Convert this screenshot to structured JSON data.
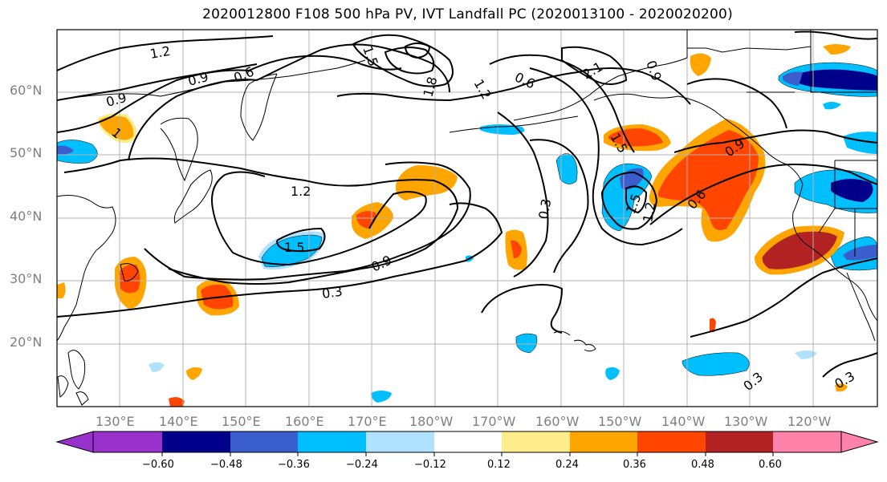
{
  "title": "2020012800 F108 500 hPa PV, IVT Landfall PC (2020013100 - 2020020200)",
  "map": {
    "lat_labels": [
      "60°N",
      "50°N",
      "40°N",
      "30°N",
      "20°N"
    ],
    "lon_labels": [
      "130°E",
      "140°E",
      "150°E",
      "160°E",
      "170°E",
      "180°W",
      "170°W",
      "160°W",
      "150°W",
      "140°W",
      "130°W",
      "120°W"
    ],
    "contour_labels": [
      "1.2",
      "0.9",
      "0.6",
      "0.9",
      "1",
      "1.5",
      "1.8",
      "1.2",
      "0.6",
      "2.1",
      "0.9",
      "1.2",
      "0.3",
      "1.5",
      "0.9",
      "0.3",
      "1.5",
      "0.6",
      "1.5",
      "1.2",
      "0.3",
      "0.3",
      "0.9"
    ],
    "shading_colors": {
      "neg_060": "#9932cc",
      "neg_048": "#00008b",
      "neg_036": "#3a5fcd",
      "neg_024": "#00bfff",
      "neg_012": "#b0e2ff",
      "zero": "#ffffff",
      "pos_012": "#ffec8b",
      "pos_024": "#ffa500",
      "pos_036": "#ff4500",
      "pos_048": "#b22222",
      "pos_060": "#ff82ab"
    }
  },
  "colorbar": {
    "tick_labels": [
      "−0.60",
      "−0.48",
      "−0.36",
      "−0.24",
      "−0.12",
      "0.12",
      "0.24",
      "0.36",
      "0.48",
      "0.60"
    ],
    "segment_colors": [
      "#9932cc",
      "#00008b",
      "#3a5fcd",
      "#00bfff",
      "#b0e2ff",
      "#ffffff",
      "#ffec8b",
      "#ffa500",
      "#ff4500",
      "#b22222",
      "#ff82ab"
    ]
  }
}
